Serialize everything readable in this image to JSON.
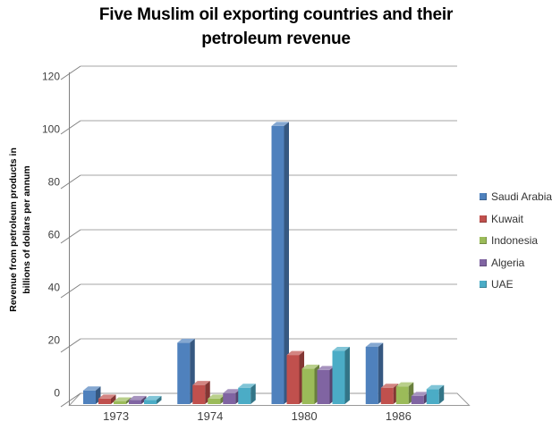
{
  "chart_data": {
    "type": "bar",
    "subtype": "3d-clustered-column",
    "title": "Five Muslim oil exporting countries and their petroleum revenue",
    "title_lines": [
      "Five Muslim oil exporting countries and their",
      "petroleum revenue"
    ],
    "ylabel": "Revenue from petroleum products in billions of dollars per annum",
    "ylabel_lines": [
      "Revenue from petroleum products in",
      "billions of dollars per annum"
    ],
    "xlabel": "",
    "categories": [
      "1973",
      "1974",
      "1980",
      "1986"
    ],
    "series": [
      {
        "name": "Saudi Arabia",
        "color": "#4F81BD",
        "values": [
          5,
          22.5,
          102,
          21
        ]
      },
      {
        "name": "Kuwait",
        "color": "#C0504D",
        "values": [
          2,
          7,
          18,
          6
        ]
      },
      {
        "name": "Indonesia",
        "color": "#9BBB59",
        "values": [
          1,
          2,
          13,
          6.5
        ]
      },
      {
        "name": "Algeria",
        "color": "#8064A2",
        "values": [
          1.5,
          4,
          12.5,
          3
        ]
      },
      {
        "name": "UAE",
        "color": "#4BACC6",
        "values": [
          1.5,
          6,
          19.5,
          5.5
        ]
      }
    ],
    "y_axis": {
      "min": 0,
      "max": 120,
      "step": 20,
      "tick_labels": [
        "0",
        "20",
        "40",
        "60",
        "80",
        "100",
        "120"
      ]
    },
    "legend_position": "right",
    "grid": true,
    "styles": {
      "gridline_color": "#A6A6A6",
      "axis_color": "#808080",
      "floor_edge_color": "#999999",
      "tick_label_color": "#404040",
      "category_label_color": "#3F3F3F",
      "legend_text_color": "#333333",
      "title_color": "#000000",
      "background": "#FFFFFF"
    }
  }
}
